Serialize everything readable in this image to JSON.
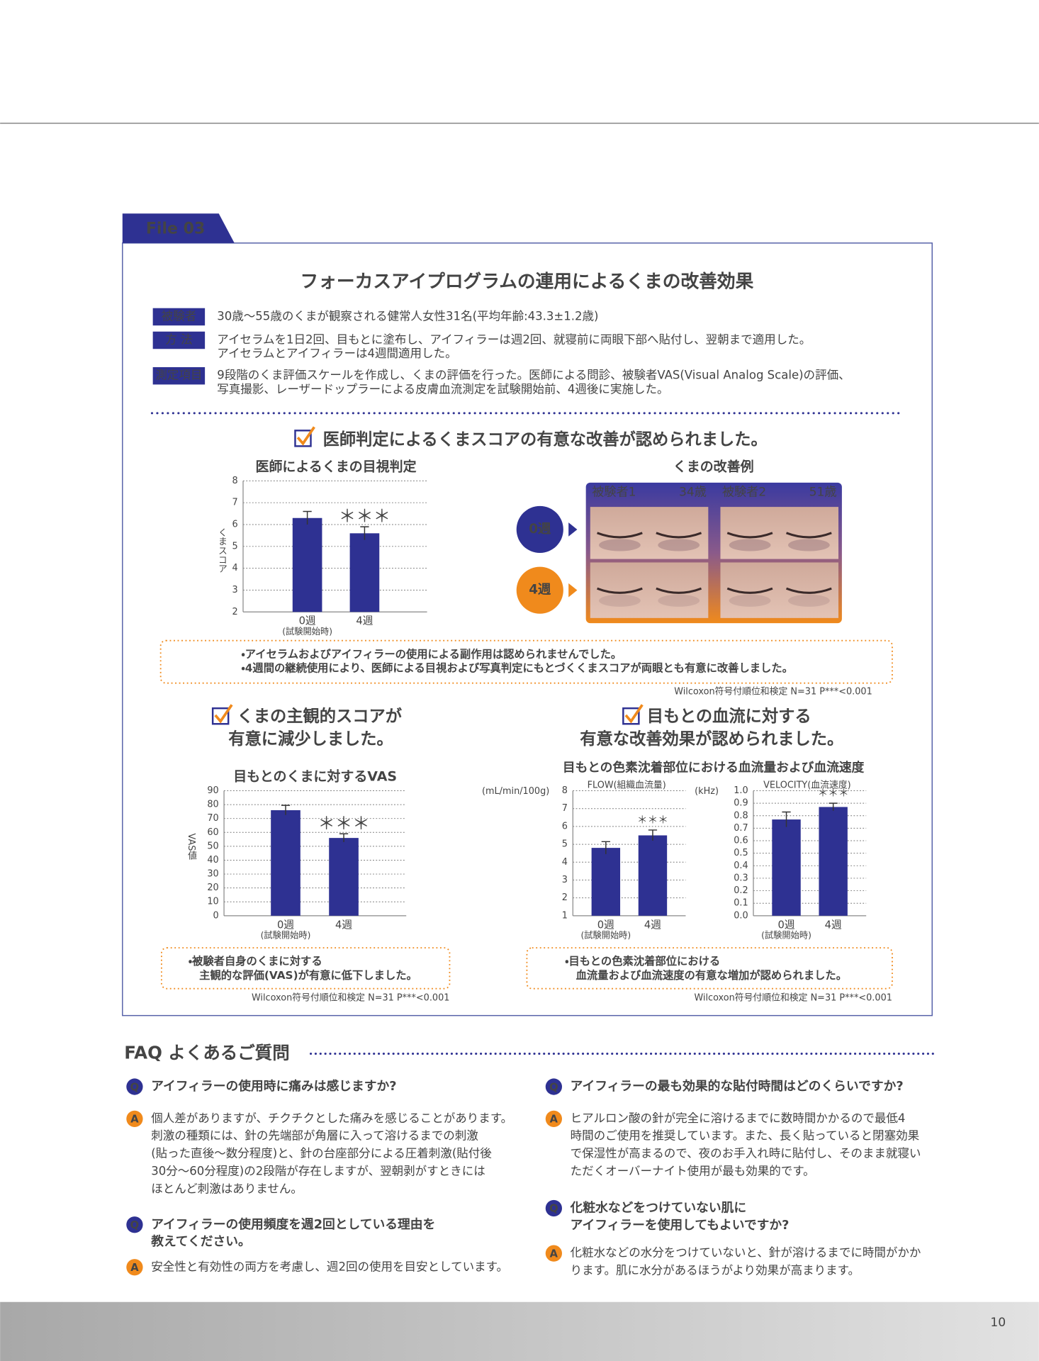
{
  "header": {
    "file_tag": "File 03",
    "title": "フォーカスアイプログラムの連用によるくまの改善効果"
  },
  "study": [
    {
      "label": "被験者",
      "lines": [
        "30歳〜55歳のくまが観察される健常人女性31名(平均年齢:43.3±1.2歳)"
      ]
    },
    {
      "label": "方 法",
      "lines": [
        "アイセラムを1日2回、目もとに塗布し、アイフィラーは週2回、就寝前に両眼下部へ貼付し、翌朝まで適用した。",
        "アイセラムとアイフィラーは4週間適用した。"
      ]
    },
    {
      "label": "測定項目",
      "lines": [
        "9段階のくま評価スケールを作成し、くまの評価を行った。医師による問診、被験者VAS(Visual Analog Scale)の評価、",
        "写真撮影、レーザードップラーによる皮膚血流測定を試験開始前、4週後に実施した。"
      ]
    }
  ],
  "finding1": {
    "heading": "医師判定によるくまスコアの有意な改善が認められました。",
    "chart": {
      "type": "bar",
      "title": "医師によるくまの目視判定",
      "y_label": "くまスコア",
      "categories": [
        "0週",
        "4週"
      ],
      "x_note": "(試験開始時)",
      "values": [
        6.3,
        5.6
      ],
      "errors": [
        0.3,
        0.3
      ],
      "significance": "＊＊＊",
      "color": "#2e3192",
      "ylim": [
        2,
        8
      ],
      "yticks": [
        2,
        3,
        4,
        5,
        6,
        7,
        8
      ],
      "grid": true
    },
    "photos": {
      "title": "くまの改善例",
      "subjects": [
        {
          "name": "被験者1",
          "age": "34歳"
        },
        {
          "name": "被験者2",
          "age": "51歳"
        }
      ],
      "rows": [
        "0週",
        "4週"
      ]
    },
    "note": [
      "・アイセラムおよびアイフィラーの使用による副作用は認められませんでした。",
      "・4週間の継続使用により、医師による目視および写真判定にもとづくくまスコアが両眼とも有意に改善しました。"
    ],
    "stat": "Wilcoxon符号付順位和検定 N=31 P***<0.001"
  },
  "finding2": {
    "heading": [
      "くまの主観的スコアが",
      "有意に減少しました。"
    ],
    "chart": {
      "type": "bar",
      "title": "目もとのくまに対するVAS",
      "y_label": "VAS値",
      "categories": [
        "0週",
        "4週"
      ],
      "x_note": "(試験開始時)",
      "values": [
        76,
        56
      ],
      "errors": [
        3.5,
        3
      ],
      "significance": "＊＊＊",
      "color": "#2e3192",
      "ylim": [
        0,
        90
      ],
      "yticks": [
        0,
        10,
        20,
        30,
        40,
        50,
        60,
        70,
        80,
        90
      ],
      "grid": true
    },
    "note": [
      "・被験者自身のくまに対する",
      "　主観的な評価(VAS)が有意に低下しました。"
    ],
    "stat": "Wilcoxon符号付順位和検定 N=31 P***<0.001"
  },
  "finding3": {
    "heading": [
      "目もとの血流に対する",
      "有意な改善効果が認められました。"
    ],
    "title": "目もとの色素沈着部位における血流量および血流速度",
    "charts": [
      {
        "type": "bar",
        "subtitle": "FLOW(組織血流量)",
        "unit": "(mL/min/100g)",
        "categories": [
          "0週",
          "4週"
        ],
        "x_note": "(試験開始時)",
        "values": [
          4.8,
          5.5
        ],
        "errors": [
          0.35,
          0.3
        ],
        "significance": "＊＊＊",
        "color": "#2e3192",
        "ylim": [
          1,
          8
        ],
        "yticks": [
          1,
          2,
          3,
          4,
          5,
          6,
          7,
          8
        ],
        "grid": true
      },
      {
        "type": "bar",
        "subtitle": "VELOCITY(血流速度)",
        "unit": "(kHz)",
        "categories": [
          "0週",
          "4週"
        ],
        "x_note": "(試験開始時)",
        "values": [
          0.77,
          0.87
        ],
        "errors": [
          0.06,
          0.03
        ],
        "significance": "＊＊＊",
        "color": "#2e3192",
        "ylim": [
          0,
          1
        ],
        "yticks": [
          {
            "value": 0,
            "label": "0.0"
          },
          0.1,
          0.2,
          0.3,
          0.4,
          0.5,
          0.6,
          0.7,
          0.8,
          0.9,
          {
            "value": 1,
            "label": "1.0"
          }
        ],
        "grid": true
      }
    ],
    "note": [
      "・目もとの色素沈着部位における",
      "　血流量および血流速度の有意な増加が認められました。"
    ],
    "stat": "Wilcoxon符号付順位和検定 N=31 P***<0.001"
  },
  "faq": {
    "title": "FAQ よくあるご質問",
    "q_mark": "Q",
    "a_mark": "A",
    "items": [
      {
        "q": [
          "アイフィラーの使用時に痛みは感じますか?"
        ],
        "a": [
          "個人差がありますが、チクチクとした痛みを感じることがあります。",
          "刺激の種類には、針の先端部が角層に入って溶けるまでの刺激",
          "(貼った直後〜数分程度)と、針の台座部分による圧着刺激(貼付後",
          "30分〜60分程度)の2段階が存在しますが、翌朝剥がすときには",
          "ほとんど刺激はありません。"
        ]
      },
      {
        "q": [
          "アイフィラーの使用頻度を週2回としている理由を",
          "教えてください。"
        ],
        "a": [
          "安全性と有効性の両方を考慮し、週2回の使用を目安としています。"
        ]
      },
      {
        "q": [
          "アイフィラーの最も効果的な貼付時間はどのくらいですか?"
        ],
        "a": [
          "ヒアルロン酸の針が完全に溶けるまでに数時間かかるので最低4",
          "時間のご使用を推奨しています。また、長く貼っていると閉塞効果",
          "で保湿性が高まるので、夜のお手入れ時に貼付し、そのまま就寝い",
          "ただくオーバーナイト使用が最も効果的です。"
        ]
      },
      {
        "q": [
          "化粧水などをつけていない肌に",
          "アイフィラーを使用してもよいですか?"
        ],
        "a": [
          "化粧水などの水分をつけていないと、針が溶けるまでに時間がかか",
          "ります。肌に水分があるほうがより効果が高まります。"
        ]
      }
    ]
  },
  "page_number": "10"
}
